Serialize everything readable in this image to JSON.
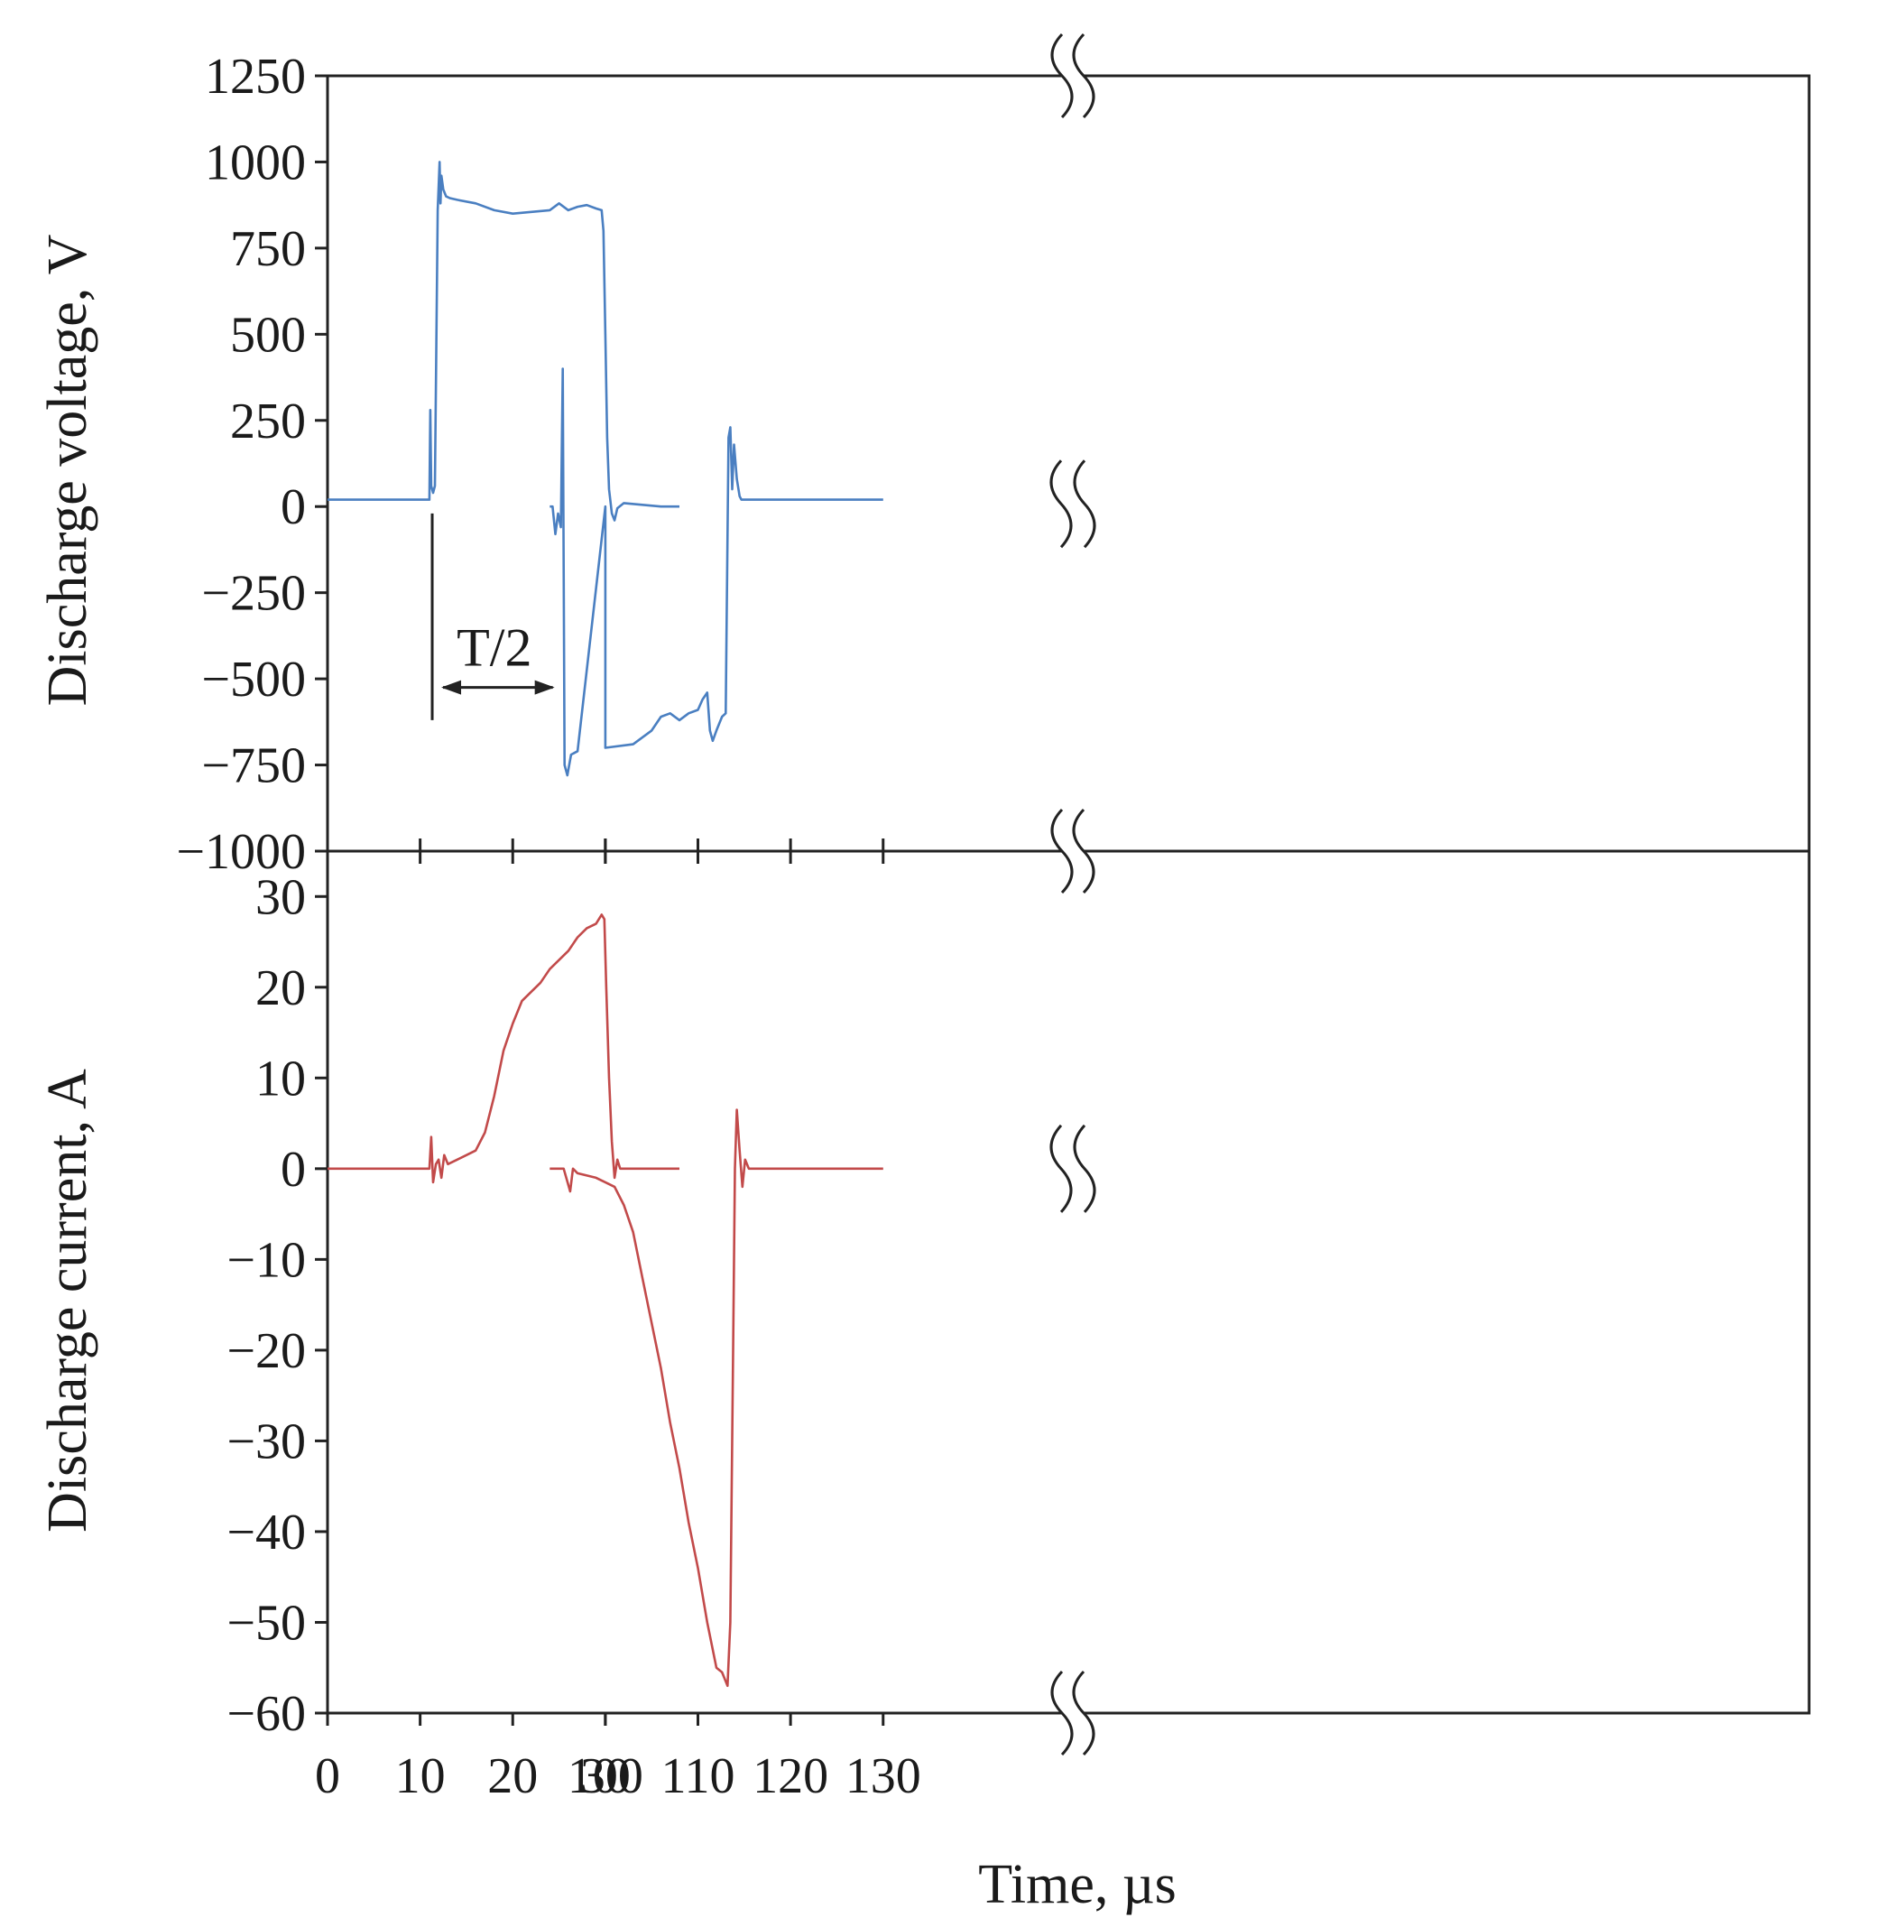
{
  "chart_data": {
    "type": "line",
    "xlabel": "Time, µs",
    "x_break": {
      "after": 30,
      "resume": 100
    },
    "x_ticks_left": [
      0,
      10,
      20,
      30
    ],
    "x_ticks_right": [
      100,
      110,
      120,
      130
    ],
    "x_tick_labels": [
      "0",
      "10",
      "20",
      "30",
      "100",
      "110",
      "120",
      "130"
    ],
    "annotation": {
      "label": "T/2",
      "from": 11.5,
      "to": 95.3
    },
    "panels": [
      {
        "id": "voltage",
        "ylabel": "Discharge voltage, V",
        "ylim": [
          -1000,
          1250
        ],
        "y_ticks": [
          1250,
          1000,
          750,
          500,
          250,
          0,
          -250,
          -500,
          -750,
          -1000
        ],
        "y_tick_labels": [
          "1250",
          "1000",
          "750",
          "500",
          "250",
          "0",
          "−250",
          "−500",
          "−750",
          "−1000"
        ],
        "color": "#4a7fc1",
        "x": [
          0,
          10,
          11.0,
          11.1,
          11.2,
          11.4,
          11.6,
          11.9,
          12.1,
          12.2,
          12.3,
          12.5,
          12.8,
          13.2,
          14,
          16,
          18,
          20,
          22,
          24,
          25,
          26,
          27,
          28,
          29,
          29.6,
          29.8,
          30.0,
          30.2,
          30.4,
          30.7,
          31.0,
          31.3,
          32,
          34,
          36,
          38,
          100.0,
          94.0,
          94.3,
          94.6,
          94.9,
          95.2,
          95.4,
          95.6,
          95.9,
          96.3,
          97,
          100,
          103,
          105,
          106,
          107,
          108,
          109,
          110,
          110.5,
          111.0,
          111.3,
          111.6,
          112,
          112.6,
          113.0,
          113.3,
          113.5,
          113.7,
          113.9,
          114.2,
          114.5,
          114.7,
          114.9,
          115.1,
          115.4,
          115.7,
          116.2,
          118,
          120,
          125,
          130
        ],
        "y": [
          20,
          20,
          20,
          280,
          60,
          40,
          60,
          860,
          1000,
          880,
          960,
          920,
          900,
          895,
          890,
          880,
          860,
          850,
          855,
          860,
          880,
          860,
          870,
          875,
          865,
          860,
          800,
          500,
          200,
          50,
          -20,
          -40,
          -5,
          10,
          5,
          0,
          0,
          0,
          0,
          0,
          -80,
          -20,
          -60,
          400,
          -750,
          -780,
          -720,
          -710,
          -700,
          -690,
          -650,
          -610,
          -600,
          -620,
          -600,
          -590,
          -560,
          -540,
          -650,
          -680,
          -650,
          -610,
          -600,
          200,
          230,
          50,
          180,
          80,
          30,
          20,
          20,
          20,
          20,
          20,
          20,
          20,
          20,
          20,
          20
        ],
        "order_note": "right-segment points with x >= 94 are plotted after the break"
      },
      {
        "id": "current",
        "ylabel": "Discharge current, A",
        "ylim": [
          -60,
          35
        ],
        "y_ticks": [
          30,
          20,
          10,
          0,
          -10,
          -20,
          -30,
          -40,
          -50,
          -60
        ],
        "y_tick_labels": [
          "30",
          "20",
          "10",
          "0",
          "−10",
          "−20",
          "−30",
          "−40",
          "−50",
          "−60"
        ],
        "color": "#c24a4a",
        "x": [
          0,
          10,
          11.0,
          11.2,
          11.4,
          11.7,
          12.0,
          12.3,
          12.6,
          13,
          14,
          15,
          16,
          17,
          18,
          19,
          20,
          21,
          22,
          23,
          24,
          25,
          26,
          27,
          28,
          29,
          29.6,
          29.9,
          30.1,
          30.4,
          30.7,
          31.0,
          31.3,
          31.6,
          32,
          34,
          36,
          38,
          94,
          95.5,
          96.2,
          96.5,
          97,
          99,
          100,
          101,
          102,
          103,
          104,
          105,
          106,
          107,
          108,
          109,
          110,
          111,
          112,
          112.6,
          113.2,
          113.5,
          113.8,
          114.0,
          114.2,
          114.5,
          114.8,
          115.1,
          115.5,
          116,
          118,
          120,
          125,
          130
        ],
        "y": [
          0,
          0,
          0,
          3.5,
          -1.5,
          0.5,
          1,
          -1,
          1.5,
          0.5,
          1,
          1.5,
          2,
          4,
          8,
          13,
          16,
          18.5,
          19.5,
          20.5,
          22,
          23,
          24,
          25.5,
          26.5,
          27,
          28,
          27.5,
          20,
          10,
          3,
          -1,
          1,
          0,
          0,
          0,
          0,
          0,
          0,
          0,
          -2.5,
          0,
          -0.5,
          -1,
          -1.5,
          -2,
          -4,
          -7,
          -12,
          -17,
          -22,
          -28,
          -33,
          -39,
          -44,
          -50,
          -55,
          -55.5,
          -57,
          -50,
          -20,
          0,
          6.5,
          2,
          -2,
          1,
          0,
          0,
          0,
          0,
          0,
          0
        ],
        "order_note": "right-segment points with x >= 94 are plotted after the break"
      }
    ]
  }
}
